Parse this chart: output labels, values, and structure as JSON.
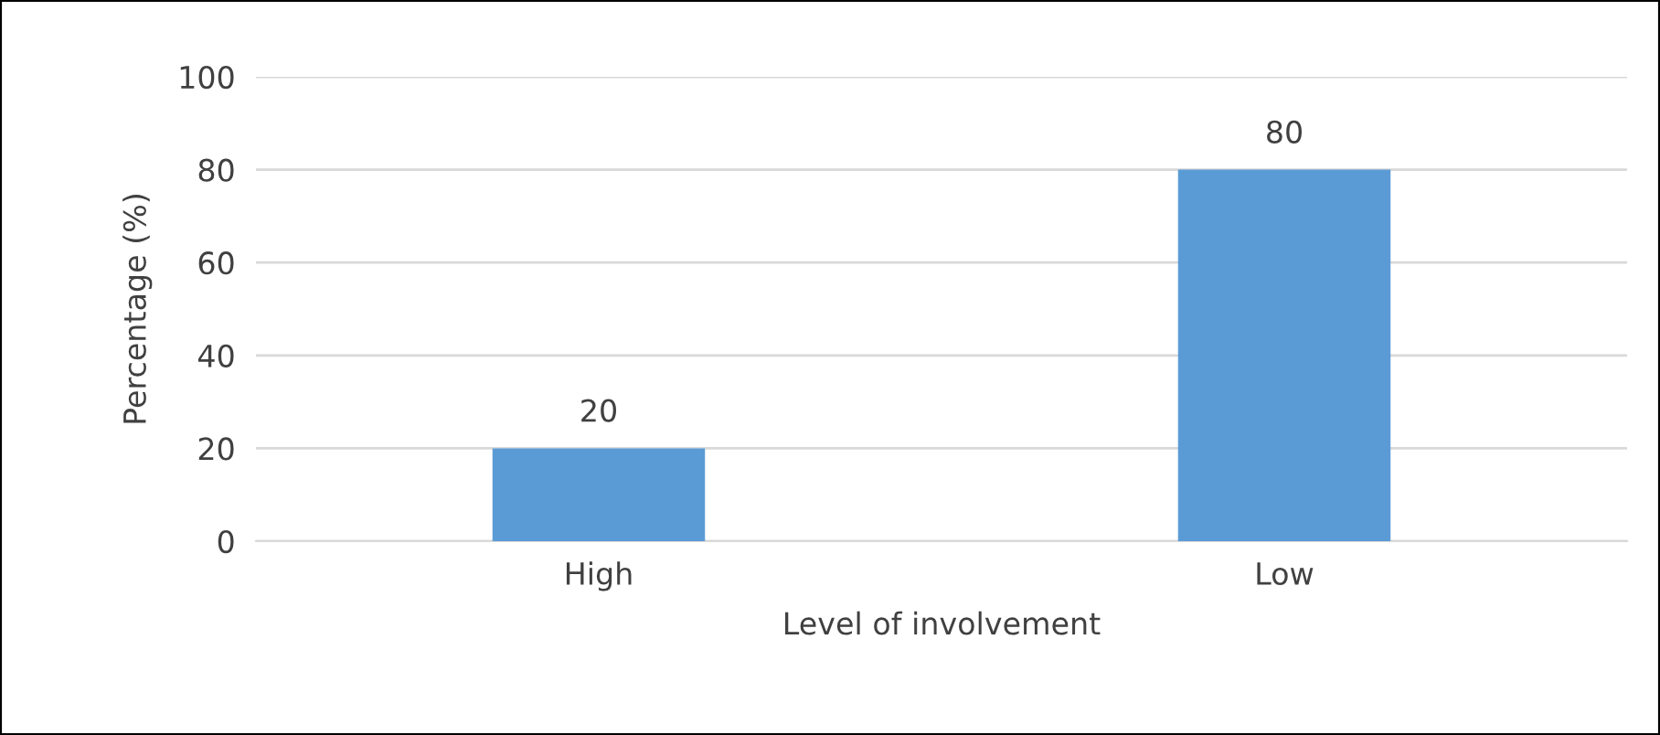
{
  "chart_data": {
    "type": "bar",
    "xlabel": "Level of involvement",
    "ylabel": "Percentage (%)",
    "categories": [
      "High",
      "Low"
    ],
    "values": [
      20,
      80
    ],
    "color": "#5b9bd5",
    "ylim": [
      0,
      100
    ],
    "yticks": [
      0,
      20,
      40,
      60,
      80,
      100
    ],
    "grid": "y",
    "data_labels": true
  }
}
